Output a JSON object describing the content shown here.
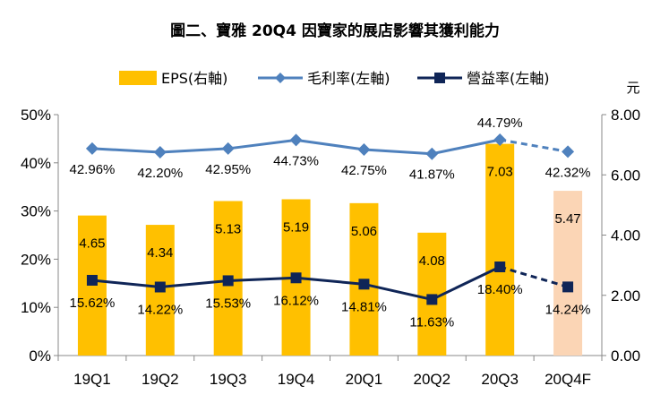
{
  "chart_data": {
    "type": "bar+line",
    "title": "圖二、寶雅 20Q4 因寶家的展店影響其獲利能力",
    "categories": [
      "19Q1",
      "19Q2",
      "19Q3",
      "19Q4",
      "20Q1",
      "20Q2",
      "20Q3",
      "20Q4F"
    ],
    "right_axis_unit": "元",
    "left_ticks": [
      "0%",
      "10%",
      "20%",
      "30%",
      "40%",
      "50%"
    ],
    "right_ticks": [
      "0.00",
      "2.00",
      "4.00",
      "6.00",
      "8.00"
    ],
    "left_ylim": [
      0,
      50
    ],
    "right_ylim": [
      0,
      8
    ],
    "grid": false,
    "legend_position": "top",
    "series": [
      {
        "name": "EPS(右軸)",
        "kind": "bar",
        "axis": "right",
        "color": "#FFC000",
        "forecast_color": "#FBD5B5",
        "values": [
          4.65,
          4.34,
          5.13,
          5.19,
          5.06,
          4.08,
          7.03,
          5.47
        ],
        "labels": [
          "4.65",
          "4.34",
          "5.13",
          "5.19",
          "5.06",
          "4.08",
          "7.03",
          "5.47"
        ]
      },
      {
        "name": "毛利率(左軸)",
        "kind": "line",
        "axis": "left",
        "color": "#4F81BD",
        "marker": "diamond",
        "values": [
          42.96,
          42.2,
          42.95,
          44.73,
          42.75,
          41.87,
          44.79,
          42.32
        ],
        "labels": [
          "42.96%",
          "42.20%",
          "42.95%",
          "44.73%",
          "42.75%",
          "41.87%",
          "44.79%",
          "42.32%"
        ]
      },
      {
        "name": "營益率(左軸)",
        "kind": "line",
        "axis": "left",
        "color": "#0F2557",
        "marker": "square",
        "values": [
          15.62,
          14.22,
          15.53,
          16.12,
          14.81,
          11.63,
          18.4,
          14.24
        ],
        "labels": [
          "15.62%",
          "14.22%",
          "15.53%",
          "16.12%",
          "14.81%",
          "11.63%",
          "18.40%",
          "14.24%"
        ]
      }
    ]
  }
}
